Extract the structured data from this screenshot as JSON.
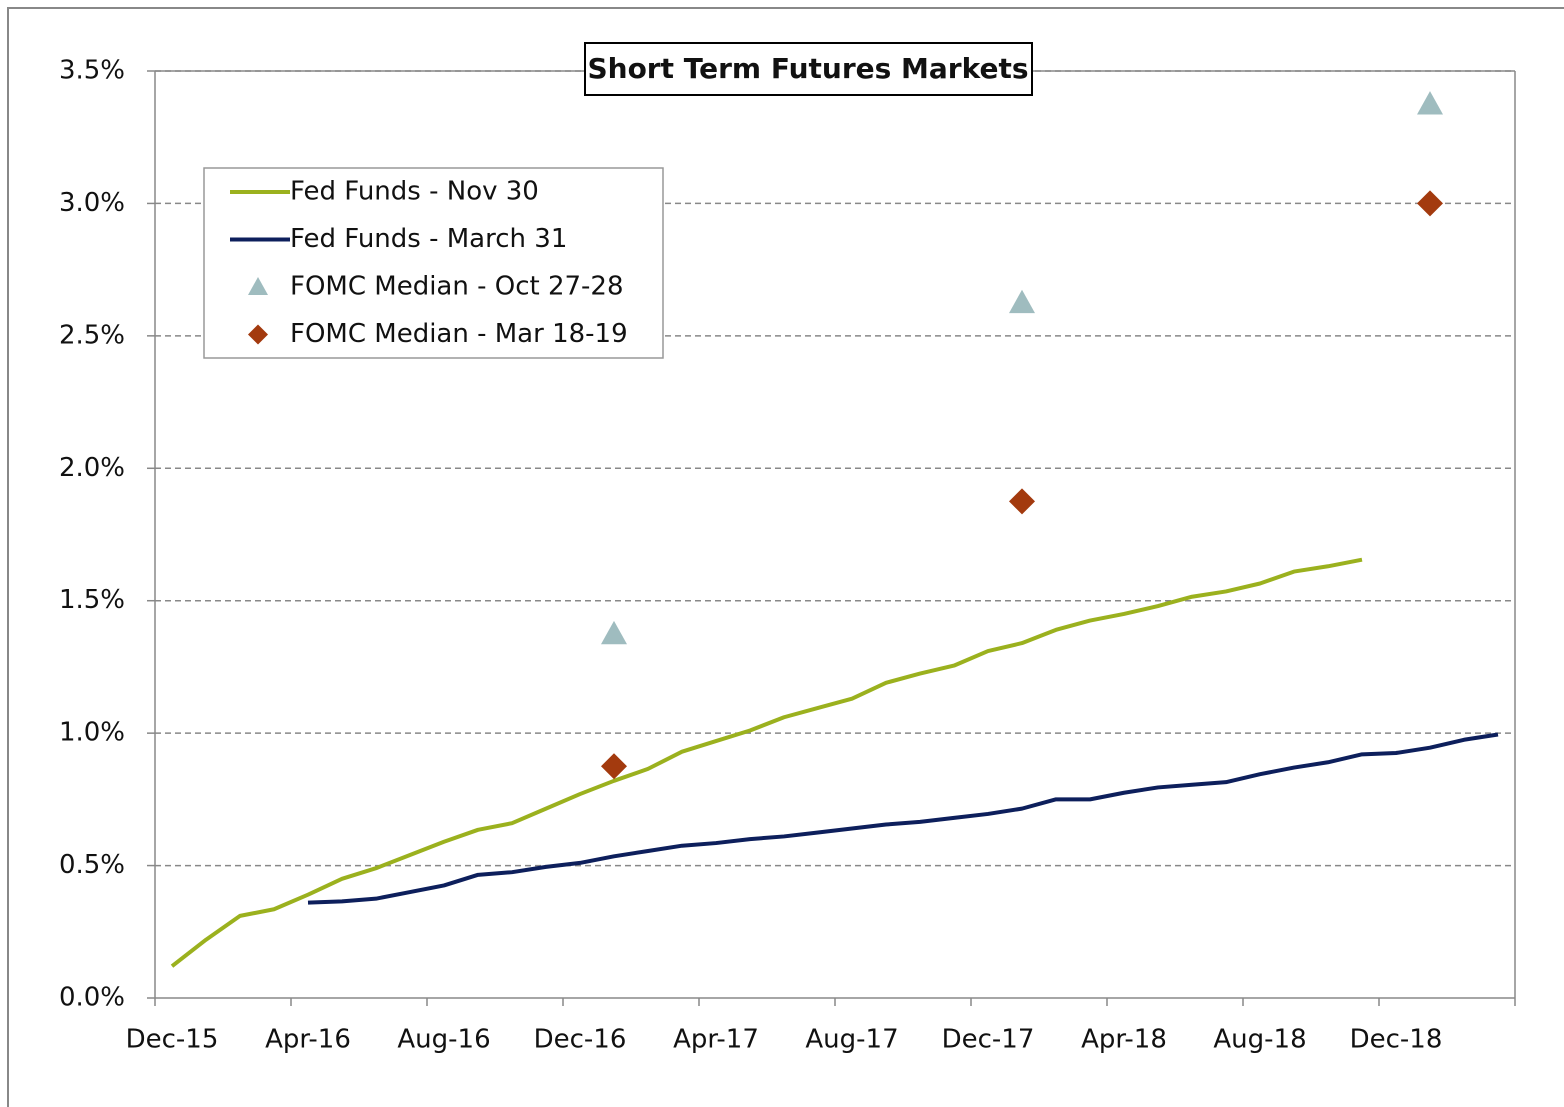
{
  "chart_data": {
    "type": "line",
    "title": "Short Term Futures Markets",
    "categories": [
      "Dec-15",
      null,
      null,
      null,
      "Apr-16",
      null,
      null,
      null,
      "Aug-16",
      null,
      null,
      null,
      "Dec-16",
      null,
      null,
      null,
      "Apr-17",
      null,
      null,
      null,
      "Aug-17",
      null,
      null,
      null,
      "Dec-17",
      null,
      null,
      null,
      "Apr-18",
      null,
      null,
      null,
      "Aug-18",
      null,
      null,
      null,
      "Dec-18",
      null,
      null,
      null
    ],
    "series": [
      {
        "name": "Fed Funds - Nov 30",
        "color": "#9bb11e",
        "style": "line",
        "values": [
          0.12,
          0.22,
          0.31,
          0.335,
          0.39,
          0.45,
          0.49,
          0.54,
          0.59,
          0.635,
          0.66,
          0.715,
          0.77,
          0.82,
          0.865,
          0.93,
          0.97,
          1.01,
          1.06,
          1.095,
          1.13,
          1.19,
          1.225,
          1.255,
          1.31,
          1.34,
          1.39,
          1.425,
          1.45,
          1.48,
          1.515,
          1.535,
          1.565,
          1.61,
          1.63,
          1.655,
          null,
          null,
          null,
          null
        ]
      },
      {
        "name": "Fed Funds - March 31",
        "color": "#0d1f5c",
        "style": "line",
        "values": [
          null,
          null,
          null,
          null,
          0.36,
          0.365,
          0.375,
          0.4,
          0.425,
          0.465,
          0.475,
          0.495,
          0.51,
          0.535,
          0.555,
          0.575,
          0.585,
          0.6,
          0.61,
          0.625,
          0.64,
          0.655,
          0.665,
          0.68,
          0.695,
          0.715,
          0.75,
          0.75,
          0.775,
          0.795,
          0.805,
          0.815,
          0.845,
          0.87,
          0.89,
          0.92,
          0.925,
          0.945,
          0.975,
          0.995
        ]
      },
      {
        "name": "FOMC Median - Oct 27-28",
        "color": "#9fbcbf",
        "style": "triangle",
        "values": [
          null,
          null,
          null,
          null,
          null,
          null,
          null,
          null,
          null,
          null,
          null,
          null,
          null,
          1.375,
          null,
          null,
          null,
          null,
          null,
          null,
          null,
          null,
          null,
          null,
          null,
          2.625,
          null,
          null,
          null,
          null,
          null,
          null,
          null,
          null,
          null,
          null,
          null,
          3.375,
          null,
          null
        ]
      },
      {
        "name": "FOMC Median - Mar 18-19",
        "color": "#a33a0e",
        "style": "diamond",
        "values": [
          null,
          null,
          null,
          null,
          null,
          null,
          null,
          null,
          null,
          null,
          null,
          null,
          null,
          0.875,
          null,
          null,
          null,
          null,
          null,
          null,
          null,
          null,
          null,
          null,
          null,
          1.875,
          null,
          null,
          null,
          null,
          null,
          null,
          null,
          null,
          null,
          null,
          null,
          3.0,
          null,
          null
        ]
      }
    ],
    "ylim": [
      0,
      3.5
    ],
    "yticks": [
      {
        "value": 0,
        "label": "0.0%"
      },
      {
        "value": 0.5,
        "label": "0.5%"
      },
      {
        "value": 1.0,
        "label": "1.0%"
      },
      {
        "value": 1.5,
        "label": "1.5%"
      },
      {
        "value": 2.0,
        "label": "2.0%"
      },
      {
        "value": 2.5,
        "label": "2.5%"
      },
      {
        "value": 3.0,
        "label": "3.0%"
      },
      {
        "value": 3.5,
        "label": "3.5%"
      }
    ],
    "grid": true,
    "legend": "upper left"
  }
}
